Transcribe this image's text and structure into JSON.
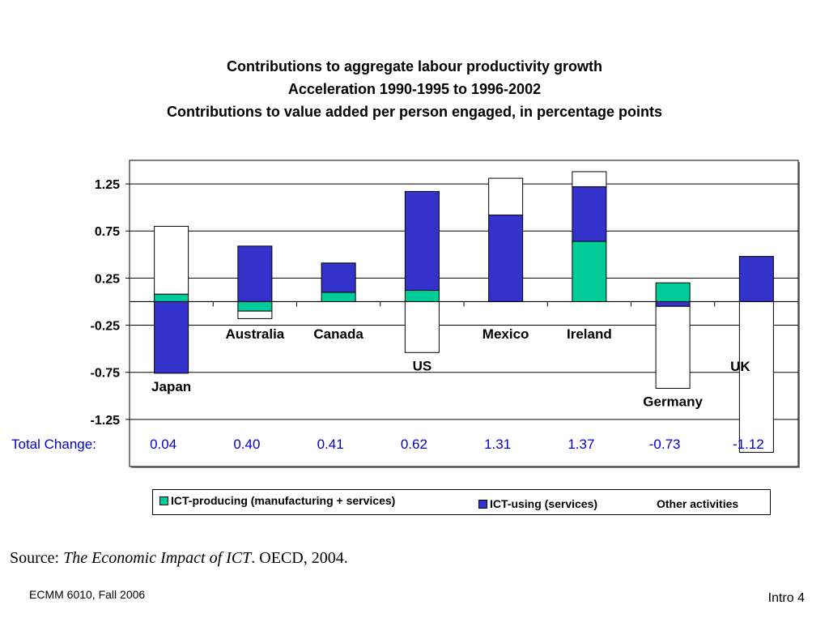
{
  "chart_data": {
    "type": "bar",
    "stacked": true,
    "title": "Contributions to aggregate labour productivity growth",
    "subtitle_lines": [
      "Acceleration 1990-1995 to 1996-2002",
      "Contributions to value added per person engaged, in percentage points"
    ],
    "ylim": [
      -1.75,
      1.5
    ],
    "yticks": [
      1.25,
      0.75,
      0.25,
      -0.25,
      -0.75,
      -1.25
    ],
    "ytick_labels": [
      "1.25",
      "0.75",
      "0.25",
      "-0.25",
      "-0.75",
      "-1.25"
    ],
    "grid": true,
    "legend_position": "bottom",
    "categories": [
      "Japan",
      "Australia",
      "Canada",
      "US",
      "Mexico",
      "Ireland",
      "Germany",
      "UK"
    ],
    "series": [
      {
        "name": "ICT-producing (manufacturing + services)",
        "color": "#00cc99",
        "values": [
          0.08,
          -0.1,
          0.1,
          0.12,
          0.0,
          0.64,
          0.2,
          0.0
        ]
      },
      {
        "name": "ICT-using (services)",
        "color": "#3333cc",
        "values": [
          -0.76,
          0.59,
          0.31,
          1.05,
          0.92,
          0.58,
          -0.05,
          0.48
        ]
      },
      {
        "name": "Other activities",
        "color": "#ffffff",
        "values": [
          0.72,
          -0.08,
          0.0,
          -0.54,
          0.39,
          0.16,
          -0.87,
          -1.6
        ]
      }
    ],
    "total_change_label": "Total Change:",
    "total_change": [
      "0.04",
      "0.40",
      "0.41",
      "0.62",
      "1.31",
      "1.37",
      "-0.73",
      "-1.12"
    ]
  },
  "source": {
    "prefix": "Source: ",
    "title": "The Economic Impact of ICT",
    "suffix": ".  OECD, 2004."
  },
  "footer": {
    "left": "ECMM 6010, Fall 2006",
    "right": "Intro 4"
  },
  "colors": {
    "text_blue": "#0000cc",
    "border": "#000000"
  }
}
